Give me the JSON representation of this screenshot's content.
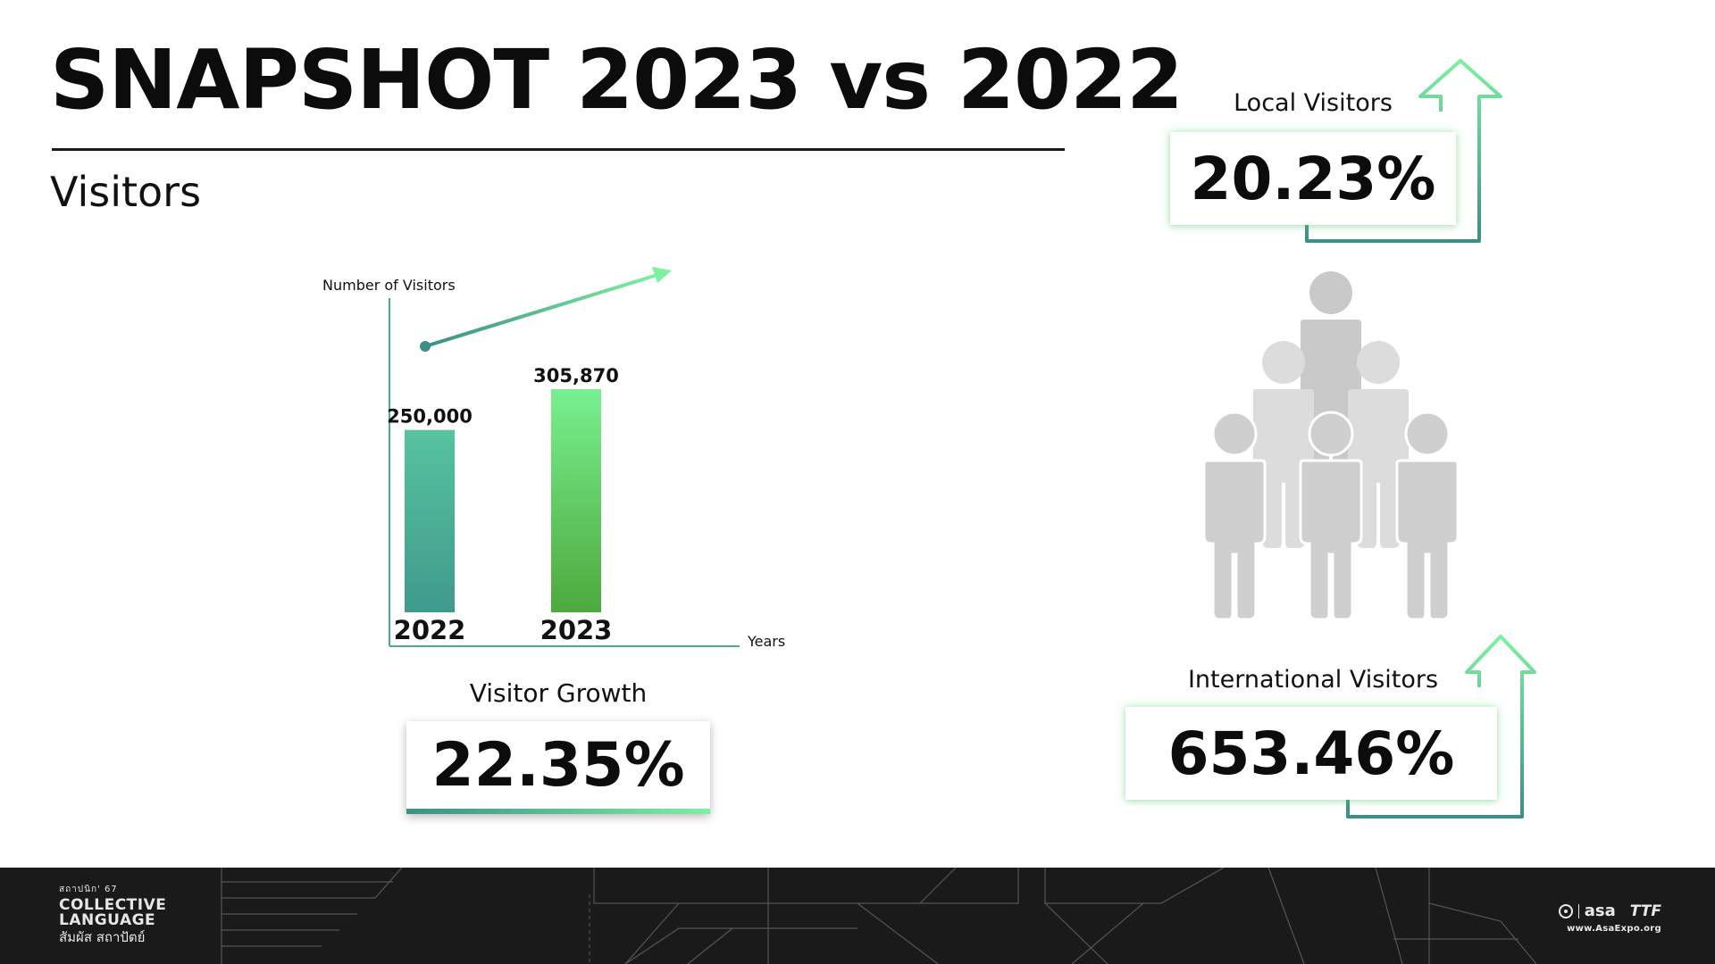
{
  "header": {
    "title": "SNAPSHOT 2023 vs 2022",
    "subtitle": "Visitors"
  },
  "chart_data": {
    "type": "bar",
    "title": "",
    "ylabel": "Number of Visitors",
    "xlabel": "Years",
    "categories": [
      "2022",
      "2023"
    ],
    "values": [
      250000,
      305870
    ],
    "data_labels": [
      "250,000",
      "305,870"
    ],
    "ylim": [
      0,
      305870
    ],
    "grid": false,
    "colors": [
      [
        "#57c39f",
        "#3f9a8c"
      ],
      [
        "#78f08f",
        "#4da93d"
      ]
    ]
  },
  "growth": {
    "label": "Visitor Growth",
    "value": "22.35%"
  },
  "local": {
    "label": "Local Visitors",
    "value": "20.23%"
  },
  "international": {
    "label": "International Visitors",
    "value": "653.46%"
  },
  "people_icon": "crowd-pyramid-icon",
  "footer": {
    "left_small": "สถาปนิก' 67",
    "left_line1": "COLLECTIVE",
    "left_line2": "LANGUAGE",
    "left_thai": "สัมผัส สถาปัตย์",
    "right_asa": "asa",
    "right_ttf": "TTF",
    "right_url": "www.AsaExpo.org"
  },
  "colors": {
    "accent_green": "#6ee68c",
    "accent_teal": "#3b8f86",
    "footer_bg": "#1b1a1a"
  }
}
